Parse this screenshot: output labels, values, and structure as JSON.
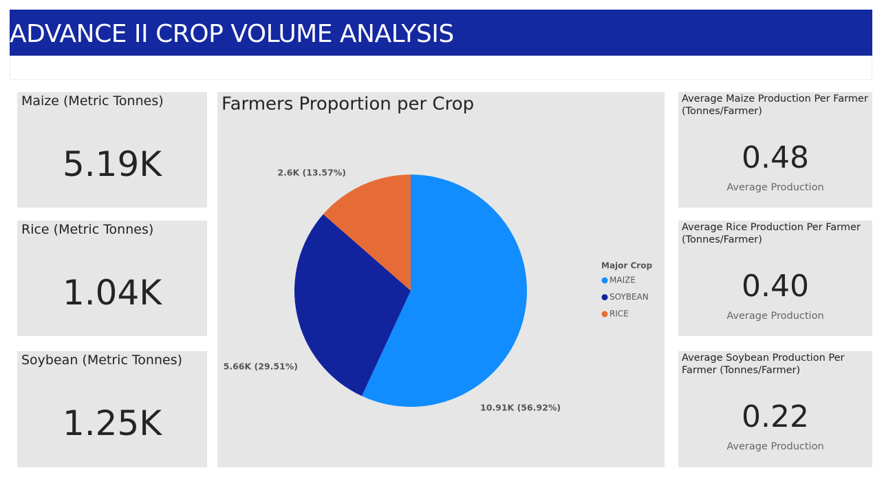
{
  "header": {
    "title": "ADVANCE II CROP VOLUME ANALYSIS"
  },
  "cards": [
    {
      "title": "Maize (Metric Tonnes)",
      "value": "5.19K"
    },
    {
      "title": "Rice (Metric Tonnes)",
      "value": "1.04K"
    },
    {
      "title": "Soybean (Metric Tonnes)",
      "value": "1.25K"
    }
  ],
  "pie": {
    "type": "pie",
    "title": "Farmers Proportion per Crop",
    "legend_title": "Major Crop",
    "categories": [
      "MAIZE",
      "SOYBEAN",
      "RICE"
    ],
    "values": [
      10910,
      5660,
      2600
    ],
    "value_labels": [
      "10.91K (56.92%)",
      "5.66K (29.51%)",
      "2.6K (13.57%)"
    ],
    "colors": [
      "#118DFF",
      "#12239E",
      "#E66C37"
    ]
  },
  "averages": [
    {
      "title": "Average Maize Production Per Farmer (Tonnes/Farmer)",
      "value": "0.48",
      "label": "Average Production"
    },
    {
      "title": "Average Rice Production Per Farmer (Tonnes/Farmer)",
      "value": "0.40",
      "label": "Average Production"
    },
    {
      "title": "Average Soybean Production Per Farmer (Tonnes/Farmer)",
      "value": "0.22",
      "label": "Average Production"
    }
  ]
}
